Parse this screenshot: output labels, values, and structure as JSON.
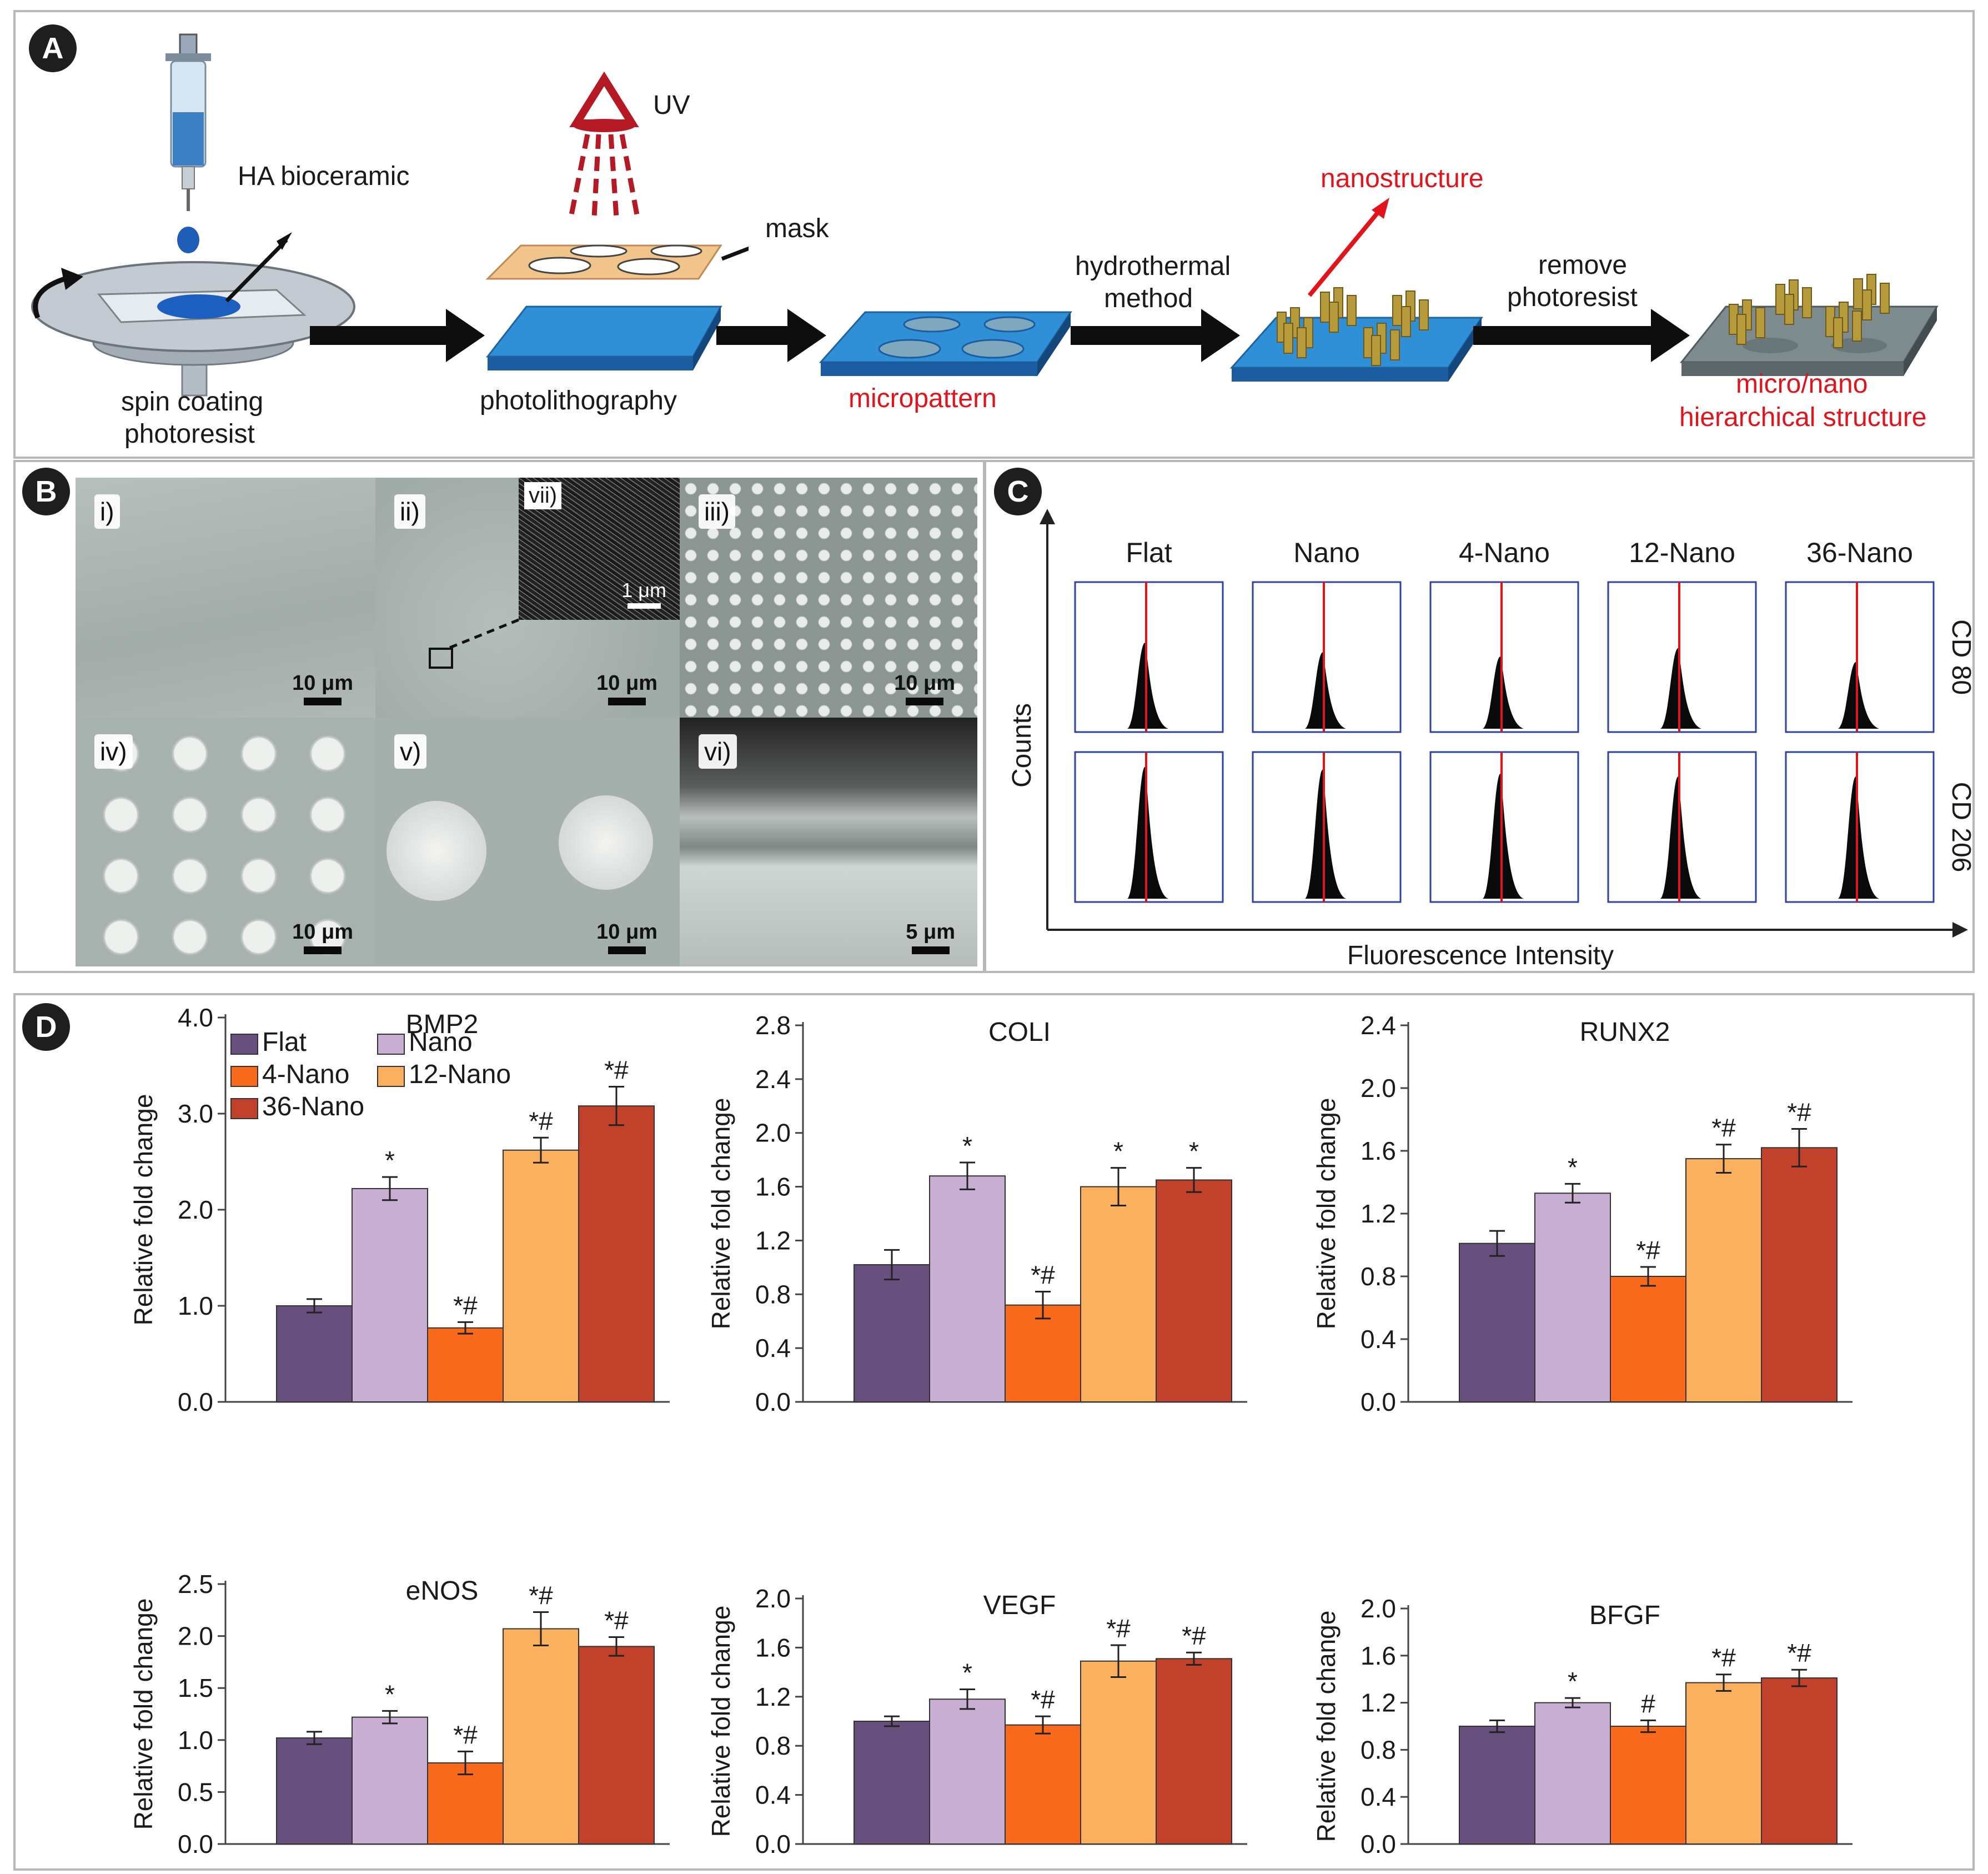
{
  "panels": {
    "a": "A",
    "b": "B",
    "c": "C",
    "d": "D"
  },
  "panel_a": {
    "steps": {
      "spin": "spin coating",
      "spin2": "photoresist",
      "ha": "HA bioceramic",
      "uv": "UV",
      "mask": "mask",
      "photo": "photolithography",
      "micro": "micropattern",
      "hydro1": "hydrothermal",
      "hydro2": "method",
      "nano": "nanostructure",
      "remove1": "remove",
      "remove2": "photoresist",
      "hier1": "micro/nano",
      "hier2": "hierarchical structure"
    },
    "colors": {
      "blue": "#2b8fd6",
      "rod": "#b79a3a",
      "grey": "#7d8b8e",
      "accent": "#e1141c"
    }
  },
  "panel_b": {
    "tiles": [
      {
        "tag": "i)",
        "scale": "10 μm"
      },
      {
        "tag": "ii)",
        "scale": "10 μm",
        "inset_tag": "vii)",
        "inset_scale": "1 μm"
      },
      {
        "tag": "iii)",
        "scale": "10 μm"
      },
      {
        "tag": "iv)",
        "scale": "10 μm"
      },
      {
        "tag": "v)",
        "scale": "10 μm"
      },
      {
        "tag": "vi)",
        "scale": "5 μm"
      }
    ]
  },
  "chart_data": [
    {
      "type": "histogram-grid",
      "title": "",
      "xlabel": "Fluorescence Intensity",
      "ylabel": "Counts",
      "columns": [
        "Flat",
        "Nano",
        "4-Nano",
        "12-Nano",
        "36-Nano"
      ],
      "rows": [
        "CD 80",
        "CD 206"
      ],
      "peak_height_fraction": [
        [
          0.62,
          0.55,
          0.52,
          0.58,
          0.48
        ],
        [
          0.95,
          0.93,
          0.9,
          0.88,
          0.88
        ]
      ]
    },
    {
      "type": "bar",
      "title": "BMP2",
      "ylabel": "Relative fold change",
      "categories": [
        "Flat",
        "Nano",
        "4-Nano",
        "12-Nano",
        "36-Nano"
      ],
      "values": [
        1.0,
        2.22,
        0.77,
        2.62,
        3.08
      ],
      "errors": [
        0.07,
        0.12,
        0.06,
        0.13,
        0.2
      ],
      "sig": [
        "",
        "*",
        "*#",
        "*#",
        "*#"
      ],
      "ylim": [
        0,
        4.0
      ],
      "yticks": [
        "0.0",
        "1.0",
        "2.0",
        "3.0",
        "4.0"
      ],
      "legend": [
        "Flat",
        "Nano",
        "4-Nano",
        "12-Nano",
        "36-Nano"
      ]
    },
    {
      "type": "bar",
      "title": "COLI",
      "ylabel": "Relative fold change",
      "categories": [
        "Flat",
        "Nano",
        "4-Nano",
        "12-Nano",
        "36-Nano"
      ],
      "values": [
        1.02,
        1.68,
        0.72,
        1.6,
        1.65
      ],
      "errors": [
        0.11,
        0.1,
        0.1,
        0.14,
        0.09
      ],
      "sig": [
        "",
        "*",
        "*#",
        "*",
        "*"
      ],
      "ylim": [
        0,
        2.8
      ],
      "yticks": [
        "0.0",
        "0.4",
        "0.8",
        "1.2",
        "1.6",
        "2.0",
        "2.4",
        "2.8"
      ]
    },
    {
      "type": "bar",
      "title": "RUNX2",
      "ylabel": "Relative fold change",
      "categories": [
        "Flat",
        "Nano",
        "4-Nano",
        "12-Nano",
        "36-Nano"
      ],
      "values": [
        1.01,
        1.33,
        0.8,
        1.55,
        1.62
      ],
      "errors": [
        0.08,
        0.06,
        0.06,
        0.09,
        0.12
      ],
      "sig": [
        "",
        "*",
        "*#",
        "*#",
        "*#"
      ],
      "ylim": [
        0,
        2.4
      ],
      "yticks": [
        "0.0",
        "0.4",
        "0.8",
        "1.2",
        "1.6",
        "2.0",
        "2.4"
      ]
    },
    {
      "type": "bar",
      "title": "eNOS",
      "ylabel": "Relative fold change",
      "categories": [
        "Flat",
        "Nano",
        "4-Nano",
        "12-Nano",
        "36-Nano"
      ],
      "values": [
        1.02,
        1.22,
        0.78,
        2.07,
        1.9
      ],
      "errors": [
        0.06,
        0.06,
        0.11,
        0.16,
        0.09
      ],
      "sig": [
        "",
        "*",
        "*#",
        "*#",
        "*#"
      ],
      "ylim": [
        0,
        2.5
      ],
      "yticks": [
        "0.0",
        "0.5",
        "1.0",
        "1.5",
        "2.0",
        "2.5"
      ]
    },
    {
      "type": "bar",
      "title": "VEGF",
      "ylabel": "Relative fold change",
      "categories": [
        "Flat",
        "Nano",
        "4-Nano",
        "12-Nano",
        "36-Nano"
      ],
      "values": [
        1.0,
        1.18,
        0.97,
        1.49,
        1.51
      ],
      "errors": [
        0.04,
        0.08,
        0.07,
        0.13,
        0.05
      ],
      "sig": [
        "",
        "*",
        "*#",
        "*#",
        "*#"
      ],
      "ylim": [
        0,
        2.0
      ],
      "yticks": [
        "0.0",
        "0.4",
        "0.8",
        "1.2",
        "1.6",
        "2.0"
      ]
    },
    {
      "type": "bar",
      "title": "BFGF",
      "ylabel": "Relative fold change",
      "categories": [
        "Flat",
        "Nano",
        "4-Nano",
        "12-Nano",
        "36-Nano"
      ],
      "values": [
        1.0,
        1.2,
        1.0,
        1.37,
        1.41
      ],
      "errors": [
        0.05,
        0.04,
        0.05,
        0.07,
        0.07
      ],
      "sig": [
        "",
        "*",
        "#",
        "*#",
        "*#"
      ],
      "ylim": [
        0,
        2.0
      ],
      "ymax_tick": 2.0,
      "yticks": [
        "0.0",
        "0.4",
        "0.8",
        "1.2",
        "1.6",
        "2.0"
      ]
    }
  ],
  "series_colors": [
    "#68507e",
    "#c8aed2",
    "#f96a1d",
    "#fbb05e",
    "#c2412b"
  ]
}
